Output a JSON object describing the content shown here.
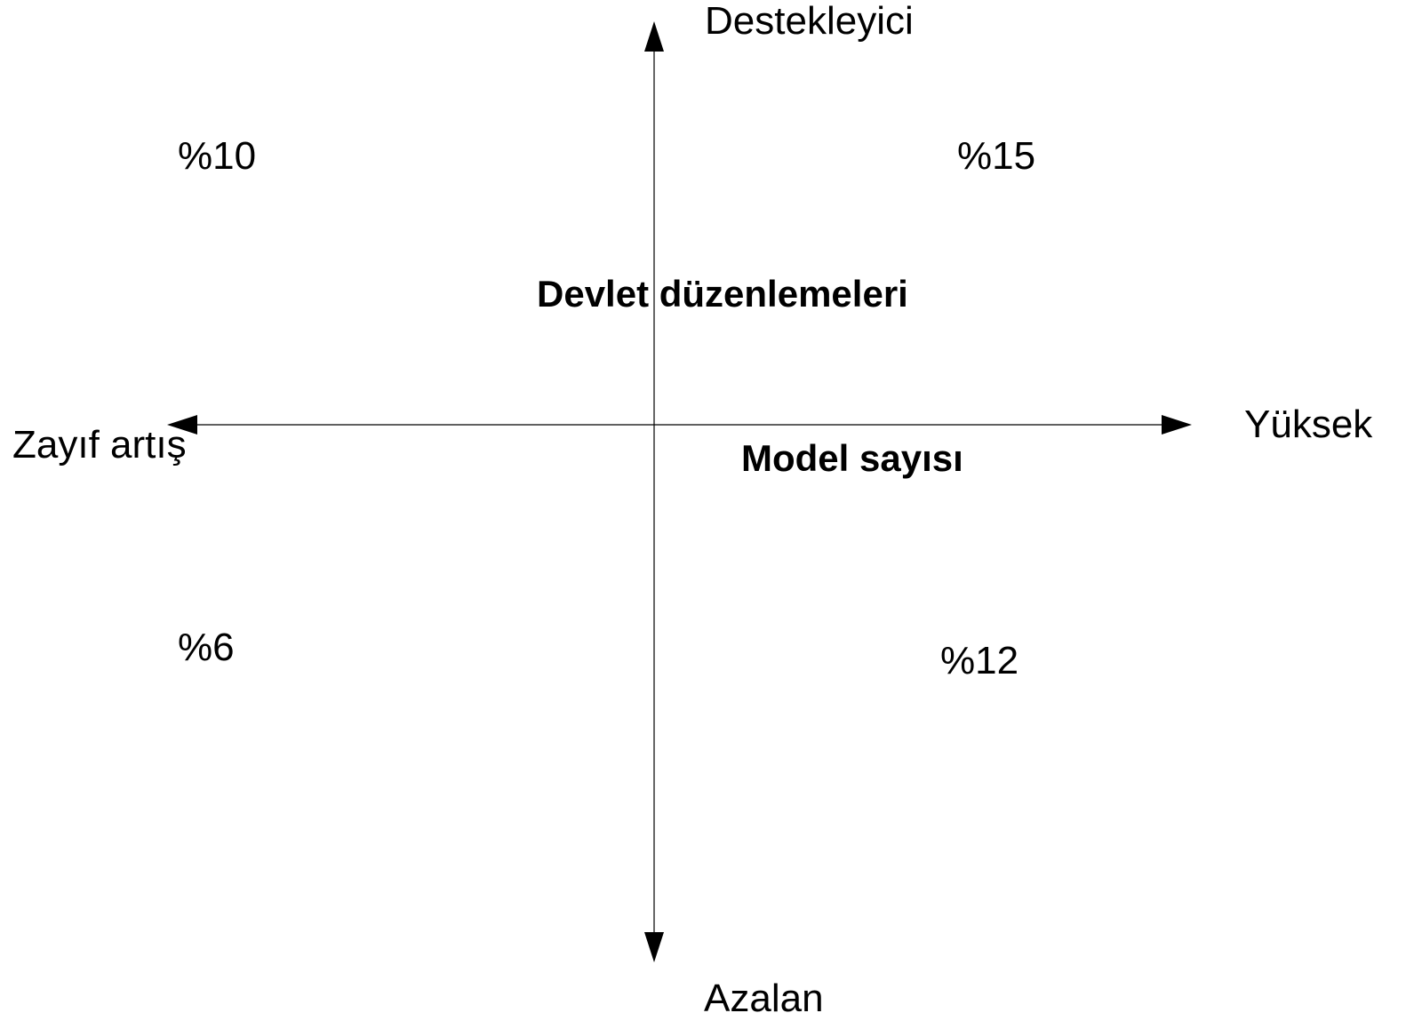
{
  "axes": {
    "top": "Destekleyici",
    "bottom": "Azalan",
    "left": "Zayıf artış",
    "right": "Yüksek"
  },
  "axis_titles": {
    "vertical": "Devlet düzenlemeleri",
    "horizontal": "Model sayısı"
  },
  "quadrants": {
    "top_left": "%10",
    "top_right": "%15",
    "bottom_left": "%6",
    "bottom_right": "%12"
  }
}
